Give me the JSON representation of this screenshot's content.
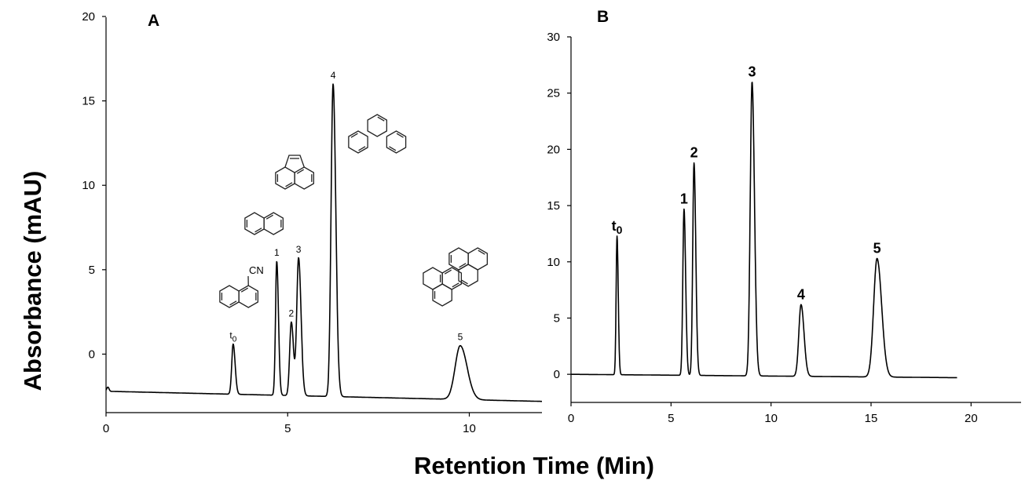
{
  "figure": {
    "ylabel": "Absorbance (mAU)",
    "xlabel": "Retention Time (Min)"
  },
  "chart_data": [
    {
      "type": "line",
      "panel": "A",
      "xlim": [
        0,
        12
      ],
      "ylim": [
        -3,
        20
      ],
      "x_ticks": [
        0,
        5,
        10
      ],
      "y_ticks": [
        0,
        5,
        10,
        15,
        20
      ],
      "grid": false,
      "peaks": [
        {
          "label": "t",
          "subscript": "0",
          "x": 3.5,
          "y": 0.6,
          "width": 0.04
        },
        {
          "label": "1",
          "x": 4.7,
          "y": 5.5,
          "width": 0.035
        },
        {
          "label": "2",
          "x": 5.1,
          "y": 1.9,
          "width": 0.045
        },
        {
          "label": "3",
          "x": 5.3,
          "y": 5.7,
          "width": 0.05
        },
        {
          "label": "4",
          "x": 6.25,
          "y": 16.0,
          "width": 0.055
        },
        {
          "label": "5",
          "x": 9.75,
          "y": 0.5,
          "width": 0.14
        }
      ],
      "baseline": {
        "start": -2.2,
        "end": -2.8
      },
      "annotations": [
        "CN"
      ]
    },
    {
      "type": "line",
      "panel": "B",
      "xlim": [
        0,
        22.5
      ],
      "ylim": [
        -2.5,
        30
      ],
      "x_ticks": [
        0,
        5,
        10,
        15,
        20
      ],
      "y_ticks": [
        0,
        5,
        10,
        15,
        20,
        25,
        30
      ],
      "x_end": 19.3,
      "grid": false,
      "peaks": [
        {
          "label": "t",
          "subscript": "0",
          "x": 2.3,
          "y": 12.3,
          "width": 0.045
        },
        {
          "label": "1",
          "x": 5.65,
          "y": 14.7,
          "width": 0.06
        },
        {
          "label": "2",
          "x": 6.15,
          "y": 18.8,
          "width": 0.065
        },
        {
          "label": "3",
          "x": 9.05,
          "y": 26.0,
          "width": 0.09
        },
        {
          "label": "4",
          "x": 11.5,
          "y": 6.2,
          "width": 0.11
        },
        {
          "label": "5",
          "x": 15.3,
          "y": 10.3,
          "width": 0.17
        }
      ],
      "baseline": {
        "start": 0.0,
        "end": -0.3
      }
    }
  ]
}
